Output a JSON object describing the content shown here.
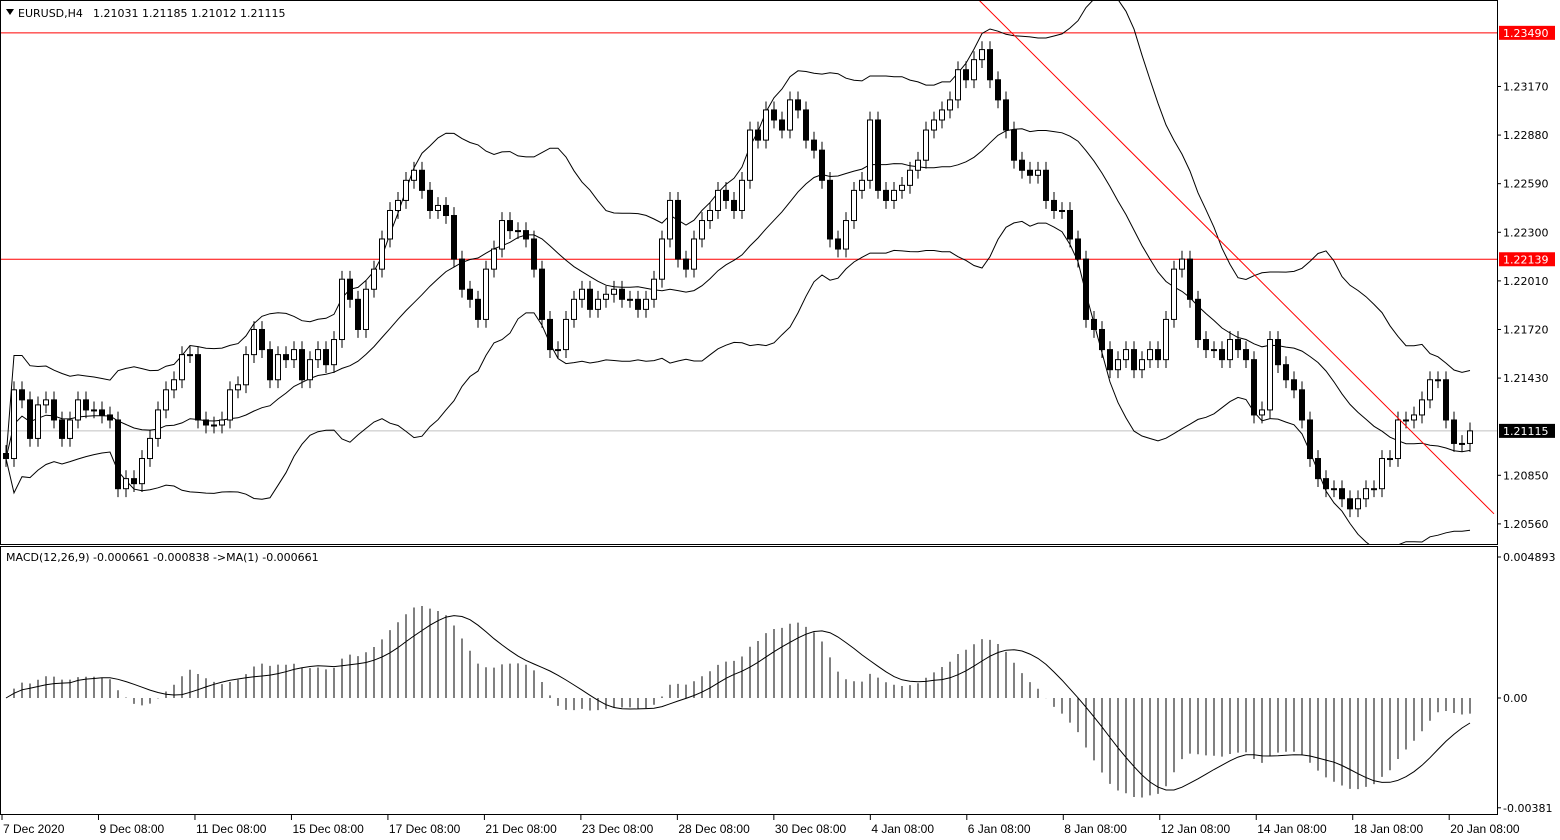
{
  "header": {
    "symbol_timeframe": "EURUSD,H4",
    "ohlc_text": "1.21031 1.21185 1.21012 1.21115"
  },
  "macd_header": "MACD(12,26,9) -0.000661 -0.000838  ->MA(1) -0.000661",
  "colors": {
    "background": "#ffffff",
    "candle_bull": "#ffffff",
    "candle_bear": "#000000",
    "level_line": "#ff0000",
    "current_price_line": "#c0c0c0",
    "current_price_label": "#000000"
  },
  "chart_data": [
    {
      "type": "candlestick",
      "symbol": "EURUSD",
      "timeframe": "H4",
      "indicators": [
        "Bollinger Bands",
        "Moving Average"
      ],
      "ylim": [
        1.2044,
        1.2368
      ],
      "y_ticks": [
        "1.23170",
        "1.22880",
        "1.22590",
        "1.22300",
        "1.22010",
        "1.21720",
        "1.21430",
        "1.20850",
        "1.20560"
      ],
      "x_ticks": [
        "7 Dec 2020",
        "9 Dec 08:00",
        "11 Dec 08:00",
        "15 Dec 08:00",
        "17 Dec 08:00",
        "21 Dec 08:00",
        "23 Dec 08:00",
        "28 Dec 08:00",
        "30 Dec 08:00",
        "4 Jan 08:00",
        "6 Jan 08:00",
        "8 Jan 08:00",
        "12 Jan 08:00",
        "14 Jan 08:00",
        "18 Jan 08:00",
        "20 Jan 08:00"
      ],
      "horizontal_levels": [
        {
          "price": 1.2349,
          "label": "1.23490",
          "color": "#ff0000"
        },
        {
          "price": 1.22139,
          "label": "1.22139",
          "color": "#ff0000"
        }
      ],
      "current_price": {
        "price": 1.21115,
        "label": "1.21115"
      },
      "trendline": {
        "color": "#ff0000",
        "start_bar": 119,
        "start_price": 1.2381,
        "end_bar": 186,
        "end_price": 1.2062
      },
      "close": [
        1.2095,
        1.2136,
        1.213,
        1.2107,
        1.2127,
        1.213,
        1.2118,
        1.2107,
        1.2118,
        1.213,
        1.2124,
        1.2124,
        1.2121,
        1.2118,
        1.2077,
        1.2083,
        1.208,
        1.2095,
        1.2107,
        1.2124,
        1.2136,
        1.2142,
        1.2157,
        1.2157,
        1.2118,
        1.2115,
        1.2115,
        1.2118,
        1.2136,
        1.2139,
        1.2157,
        1.2172,
        1.216,
        1.2142,
        1.2157,
        1.2154,
        1.216,
        1.2142,
        1.2154,
        1.216,
        1.2151,
        1.2166,
        1.2202,
        1.219,
        1.2172,
        1.2196,
        1.2208,
        1.2226,
        1.2243,
        1.2249,
        1.2261,
        1.2267,
        1.2255,
        1.2243,
        1.2246,
        1.224,
        1.2214,
        1.2196,
        1.219,
        1.2178,
        1.2208,
        1.222,
        1.2237,
        1.2231,
        1.2231,
        1.2226,
        1.2208,
        1.2178,
        1.216,
        1.216,
        1.2178,
        1.219,
        1.2196,
        1.2184,
        1.219,
        1.2193,
        1.2196,
        1.219,
        1.219,
        1.2184,
        1.219,
        1.2202,
        1.2226,
        1.2249,
        1.2214,
        1.2208,
        1.2226,
        1.2237,
        1.2243,
        1.2255,
        1.2249,
        1.2243,
        1.2261,
        1.2291,
        1.2285,
        1.2303,
        1.2297,
        1.2291,
        1.2309,
        1.2303,
        1.2285,
        1.2279,
        1.2261,
        1.2226,
        1.222,
        1.2237,
        1.2255,
        1.2261,
        1.2297,
        1.2255,
        1.2249,
        1.2255,
        1.2258,
        1.2267,
        1.2273,
        1.2291,
        1.2297,
        1.2303,
        1.2309,
        1.2327,
        1.2321,
        1.2333,
        1.2339,
        1.2321,
        1.2309,
        1.2291,
        1.2273,
        1.2267,
        1.2264,
        1.2267,
        1.2249,
        1.2243,
        1.2243,
        1.2226,
        1.2214,
        1.2178,
        1.2172,
        1.216,
        1.2148,
        1.2154,
        1.216,
        1.2148,
        1.2154,
        1.216,
        1.2154,
        1.2178,
        1.2208,
        1.2214,
        1.219,
        1.2166,
        1.216,
        1.216,
        1.2154,
        1.2166,
        1.216,
        1.2154,
        1.2121,
        1.2124,
        1.2166,
        1.2151,
        1.2142,
        1.2136,
        1.2118,
        1.2095,
        1.2083,
        1.2077,
        1.2077,
        1.2071,
        1.2065,
        1.2071,
        1.2077,
        1.2077,
        1.2095,
        1.2095,
        1.2118,
        1.2118,
        1.2121,
        1.213,
        1.2142,
        1.2142,
        1.2118,
        1.2104,
        1.2104,
        1.21115
      ]
    },
    {
      "type": "bar",
      "indicator": "MACD(12,26,9)",
      "ylim": [
        -0.00381,
        0.004893
      ],
      "y_ticks": [
        "0.004893",
        "0.00",
        "-0.00381"
      ],
      "series": [
        "histogram",
        "signal line"
      ]
    }
  ]
}
